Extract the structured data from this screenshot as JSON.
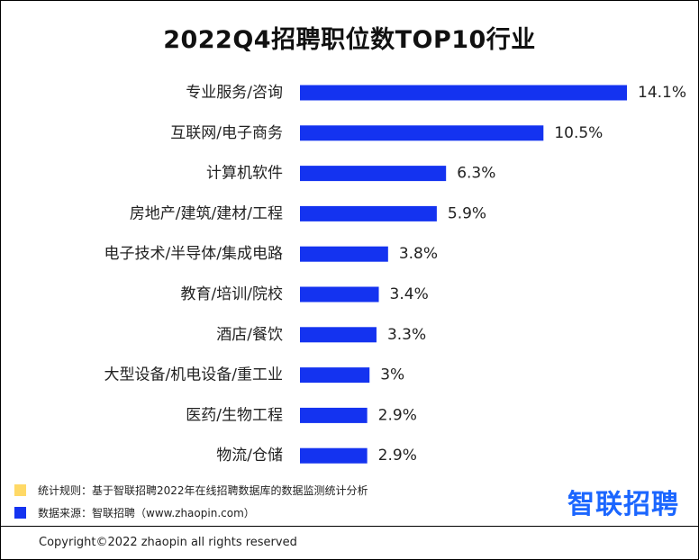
{
  "chart_data": {
    "type": "bar",
    "orientation": "horizontal",
    "title": "2022Q4招聘职位数TOP10行业",
    "categories": [
      "专业服务/咨询",
      "互联网/电子商务",
      "计算机软件",
      "房地产/建筑/建材/工程",
      "电子技术/半导体/集成电路",
      "教育/培训/院校",
      "酒店/餐饮",
      "大型设备/机电设备/重工业",
      "医药/生物工程",
      "物流/仓储"
    ],
    "values": [
      14.1,
      10.5,
      6.3,
      5.9,
      3.8,
      3.4,
      3.3,
      3.0,
      2.9,
      2.9
    ],
    "value_labels": [
      "14.1%",
      "10.5%",
      "6.3%",
      "5.9%",
      "3.8%",
      "3.4%",
      "3.3%",
      "3%",
      "2.9%",
      "2.9%"
    ],
    "xlim": [
      0,
      14.1
    ],
    "grid": false,
    "legend": "none"
  },
  "colors": {
    "bar": "#1433f0",
    "note_rule": "#ffd966",
    "note_source": "#1433f0",
    "logo": "#1b66ff"
  },
  "notes": {
    "rule": "统计规则：基于智联招聘2022年在线招聘数据库的数据监测统计分析",
    "source": "数据来源：智联招聘（www.zhaopin.com）"
  },
  "logo": {
    "text": "智联招聘"
  },
  "footer": {
    "copyright": "Copyright©2022 zhaopin all rights reserved"
  }
}
